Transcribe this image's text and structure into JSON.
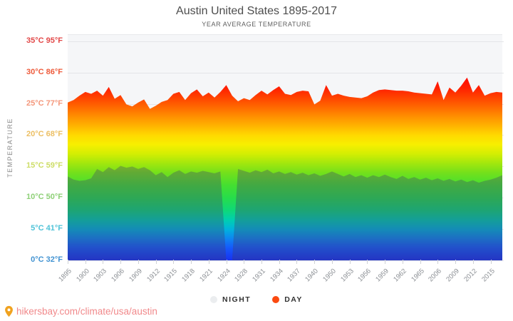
{
  "header": {
    "title": "Austin United States 1895-2017",
    "subtitle": "YEAR AVERAGE TEMPERATURE"
  },
  "y_axis": {
    "title": "TEMPERATURE",
    "labels": [
      {
        "text": "35°C 95°F",
        "temp": 35,
        "color": "#e24747"
      },
      {
        "text": "30°C 86°F",
        "temp": 30,
        "color": "#ee5b3b"
      },
      {
        "text": "25°C 77°F",
        "temp": 25,
        "color": "#f4977b"
      },
      {
        "text": "20°C 68°F",
        "temp": 20,
        "color": "#ecbf63"
      },
      {
        "text": "15°C 59°F",
        "temp": 15,
        "color": "#cddd66"
      },
      {
        "text": "10°C 50°F",
        "temp": 10,
        "color": "#8ed077"
      },
      {
        "text": "5°C 41°F",
        "temp": 5,
        "color": "#4fc3d8"
      },
      {
        "text": "0°C 32°F",
        "temp": 0,
        "color": "#4293d2"
      }
    ]
  },
  "legend": [
    {
      "label": "NIGHT",
      "color": "#ebedef"
    },
    {
      "label": "DAY",
      "color": "#fb4a10"
    }
  ],
  "footer": {
    "url": "hikersbay.com/climate/usa/austin",
    "link_color": "#f1898b",
    "pin_color": "#f0a21f"
  },
  "chart_data": {
    "type": "area",
    "title": "Austin United States 1895-2017",
    "subtitle": "YEAR AVERAGE TEMPERATURE",
    "ylabel": "TEMPERATURE",
    "ylim": [
      0,
      36
    ],
    "grid": true,
    "legend_position": "bottom",
    "x_tick_labels": [
      "1895",
      "1900",
      "1903",
      "1906",
      "1909",
      "1912",
      "1915",
      "1918",
      "1921",
      "1924",
      "1928",
      "1931",
      "1934",
      "1937",
      "1940",
      "1950",
      "1953",
      "1956",
      "1959",
      "1962",
      "1965",
      "2006",
      "2009",
      "2012",
      "2015"
    ],
    "label_every_n_categories": 3,
    "series": [
      {
        "name": "DAY",
        "unit": "°C",
        "values": [
          25.2,
          25.6,
          26.3,
          26.9,
          26.6,
          27.1,
          26.3,
          27.7,
          25.8,
          26.4,
          24.9,
          24.6,
          25.2,
          25.7,
          24.2,
          24.7,
          25.3,
          25.6,
          26.6,
          26.9,
          25.6,
          26.7,
          27.3,
          26.2,
          26.8,
          26.0,
          26.9,
          28.0,
          26.3,
          25.4,
          25.9,
          25.6,
          26.4,
          27.1,
          26.5,
          27.2,
          27.8,
          26.6,
          26.4,
          26.9,
          27.1,
          27.0,
          24.9,
          25.5,
          28.0,
          26.3,
          26.6,
          26.3,
          26.1,
          26.0,
          25.9,
          26.2,
          26.8,
          27.2,
          27.3,
          27.2,
          27.1,
          27.1,
          27.0,
          26.8,
          26.7,
          26.6,
          26.5,
          28.6,
          25.6,
          27.6,
          26.8,
          27.9,
          29.2,
          26.8,
          28.0,
          26.3,
          26.7,
          26.9,
          26.8
        ]
      },
      {
        "name": "NIGHT",
        "unit": "°C",
        "values": [
          13.4,
          12.9,
          12.7,
          12.8,
          13.1,
          14.6,
          14.1,
          14.9,
          14.4,
          15.1,
          14.8,
          15.0,
          14.6,
          14.9,
          14.4,
          13.6,
          14.1,
          13.3,
          14.0,
          14.4,
          13.8,
          14.2,
          14.0,
          14.3,
          14.1,
          13.9,
          14.2,
          0,
          0,
          14.6,
          14.3,
          14.0,
          14.4,
          14.1,
          14.5,
          13.9,
          14.2,
          13.8,
          14.1,
          13.7,
          14.0,
          13.6,
          13.9,
          13.5,
          13.8,
          14.2,
          13.8,
          13.4,
          13.8,
          13.3,
          13.6,
          13.2,
          13.6,
          13.3,
          13.7,
          13.3,
          13.0,
          13.5,
          13.0,
          13.3,
          12.9,
          13.2,
          12.8,
          13.1,
          12.7,
          13.0,
          12.6,
          12.9,
          12.5,
          12.8,
          12.4,
          12.7,
          12.9,
          13.2,
          13.6
        ]
      }
    ],
    "gradient_stops": [
      {
        "t": 0,
        "color": "#1832f0"
      },
      {
        "t": 2,
        "color": "#1559fb"
      },
      {
        "t": 3.5,
        "color": "#0e86f0"
      },
      {
        "t": 5,
        "color": "#00b4dc"
      },
      {
        "t": 6.5,
        "color": "#00cfae"
      },
      {
        "t": 8,
        "color": "#0fd878"
      },
      {
        "t": 10,
        "color": "#27dd4b"
      },
      {
        "t": 12,
        "color": "#44df31"
      },
      {
        "t": 14,
        "color": "#74e01b"
      },
      {
        "t": 15.5,
        "color": "#a2e70d"
      },
      {
        "t": 17,
        "color": "#d3ee03"
      },
      {
        "t": 18.5,
        "color": "#f7ef00"
      },
      {
        "t": 20,
        "color": "#ffd900"
      },
      {
        "t": 21.5,
        "color": "#ffb300"
      },
      {
        "t": 23,
        "color": "#ff8f00"
      },
      {
        "t": 24.5,
        "color": "#ff6800"
      },
      {
        "t": 26,
        "color": "#ff4300"
      },
      {
        "t": 27.5,
        "color": "#ff2000"
      },
      {
        "t": 29.5,
        "color": "#ff0500"
      },
      {
        "t": 36,
        "color": "#fa0000"
      }
    ],
    "night_overlay_color": "rgba(62,62,105,0.33)"
  }
}
